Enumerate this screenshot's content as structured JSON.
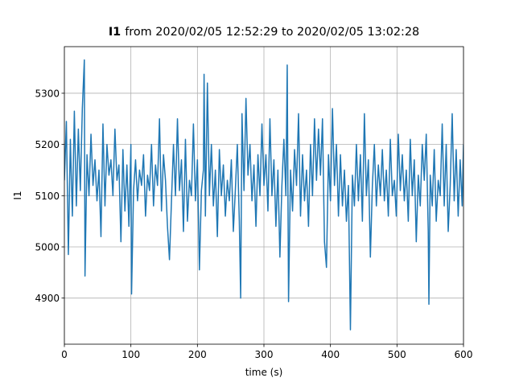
{
  "chart_data": {
    "type": "line",
    "title_var": "I1",
    "title": "from 2020/02/05 12:52:29 to 2020/02/05 13:02:28",
    "xlabel": "time (s)",
    "ylabel": "I1",
    "xlim": [
      0,
      600
    ],
    "xticks": [
      0,
      100,
      200,
      300,
      400,
      500,
      600
    ],
    "ylim": [
      4810,
      5391
    ],
    "yticks": [
      4900,
      5000,
      5100,
      5200,
      5300
    ],
    "grid": true,
    "x": [
      0,
      3,
      6,
      9,
      12,
      15,
      18,
      21,
      24,
      27,
      30,
      31,
      34,
      37,
      40,
      43,
      46,
      49,
      52,
      55,
      58,
      61,
      64,
      67,
      70,
      73,
      76,
      79,
      82,
      85,
      88,
      91,
      94,
      97,
      100,
      101,
      104,
      107,
      110,
      113,
      116,
      119,
      122,
      125,
      128,
      131,
      134,
      137,
      140,
      143,
      146,
      149,
      152,
      155,
      158,
      161,
      164,
      167,
      170,
      173,
      176,
      179,
      182,
      185,
      188,
      191,
      194,
      197,
      200,
      203,
      206,
      209,
      210,
      212,
      215,
      218,
      221,
      224,
      227,
      230,
      233,
      236,
      239,
      242,
      245,
      248,
      251,
      254,
      257,
      260,
      263,
      265,
      267,
      270,
      273,
      276,
      279,
      282,
      285,
      288,
      291,
      294,
      297,
      300,
      303,
      306,
      309,
      312,
      315,
      318,
      321,
      324,
      327,
      330,
      333,
      335,
      337,
      340,
      343,
      346,
      349,
      352,
      355,
      358,
      361,
      364,
      367,
      370,
      373,
      376,
      379,
      382,
      385,
      388,
      391,
      394,
      397,
      400,
      403,
      406,
      409,
      412,
      415,
      418,
      421,
      424,
      427,
      430,
      433,
      436,
      439,
      442,
      445,
      448,
      451,
      454,
      457,
      460,
      463,
      466,
      469,
      472,
      475,
      478,
      481,
      484,
      487,
      490,
      493,
      496,
      499,
      502,
      505,
      508,
      511,
      514,
      517,
      520,
      523,
      526,
      529,
      532,
      535,
      538,
      541,
      544,
      547,
      548,
      550,
      553,
      556,
      559,
      562,
      565,
      568,
      571,
      574,
      577,
      580,
      583,
      586,
      589,
      592,
      595,
      598,
      600
    ],
    "series": [
      {
        "color": "#1f77b4",
        "values": [
          5130,
          5245,
          4985,
          5210,
          5060,
          5265,
          5080,
          5230,
          5110,
          5270,
          5365,
          4943,
          5180,
          5100,
          5220,
          5120,
          5170,
          5090,
          5150,
          5020,
          5240,
          5080,
          5200,
          5140,
          5170,
          5100,
          5230,
          5130,
          5160,
          5010,
          5190,
          5070,
          5160,
          5040,
          5200,
          4908,
          5110,
          5170,
          5090,
          5150,
          5120,
          5180,
          5060,
          5140,
          5110,
          5200,
          5080,
          5160,
          5120,
          5250,
          5070,
          5180,
          5130,
          5040,
          4975,
          5090,
          5200,
          5100,
          5250,
          5110,
          5170,
          5030,
          5210,
          5050,
          5130,
          5100,
          5240,
          5090,
          5170,
          4955,
          5110,
          5150,
          5337,
          5060,
          5320,
          5100,
          5200,
          5080,
          5150,
          5020,
          5190,
          5100,
          5160,
          5060,
          5130,
          5090,
          5170,
          5030,
          5110,
          5200,
          5050,
          4900,
          5260,
          5110,
          5290,
          5140,
          5200,
          5090,
          5160,
          5040,
          5180,
          5100,
          5240,
          5120,
          5180,
          5070,
          5250,
          5100,
          5170,
          5040,
          5150,
          4980,
          5120,
          5210,
          5100,
          5355,
          4893,
          5150,
          5070,
          5190,
          5120,
          5260,
          5060,
          5180,
          5090,
          5150,
          5040,
          5200,
          5100,
          5250,
          5130,
          5230,
          5140,
          5250,
          5010,
          4960,
          5180,
          5090,
          5270,
          5120,
          5200,
          5060,
          5180,
          5080,
          5150,
          5050,
          5120,
          4838,
          5140,
          5080,
          5200,
          5090,
          5180,
          5050,
          5260,
          5100,
          5170,
          4980,
          5120,
          5200,
          5080,
          5160,
          5100,
          5190,
          5090,
          5150,
          5060,
          5210,
          5100,
          5130,
          5060,
          5220,
          5110,
          5180,
          5090,
          5150,
          5050,
          5210,
          5100,
          5170,
          5010,
          5140,
          5080,
          5200,
          5130,
          5220,
          5030,
          4888,
          5140,
          5080,
          5190,
          5050,
          5130,
          5100,
          5240,
          5080,
          5200,
          5030,
          5120,
          5260,
          5090,
          5190,
          5060,
          5170,
          5080,
          5200
        ]
      }
    ]
  }
}
